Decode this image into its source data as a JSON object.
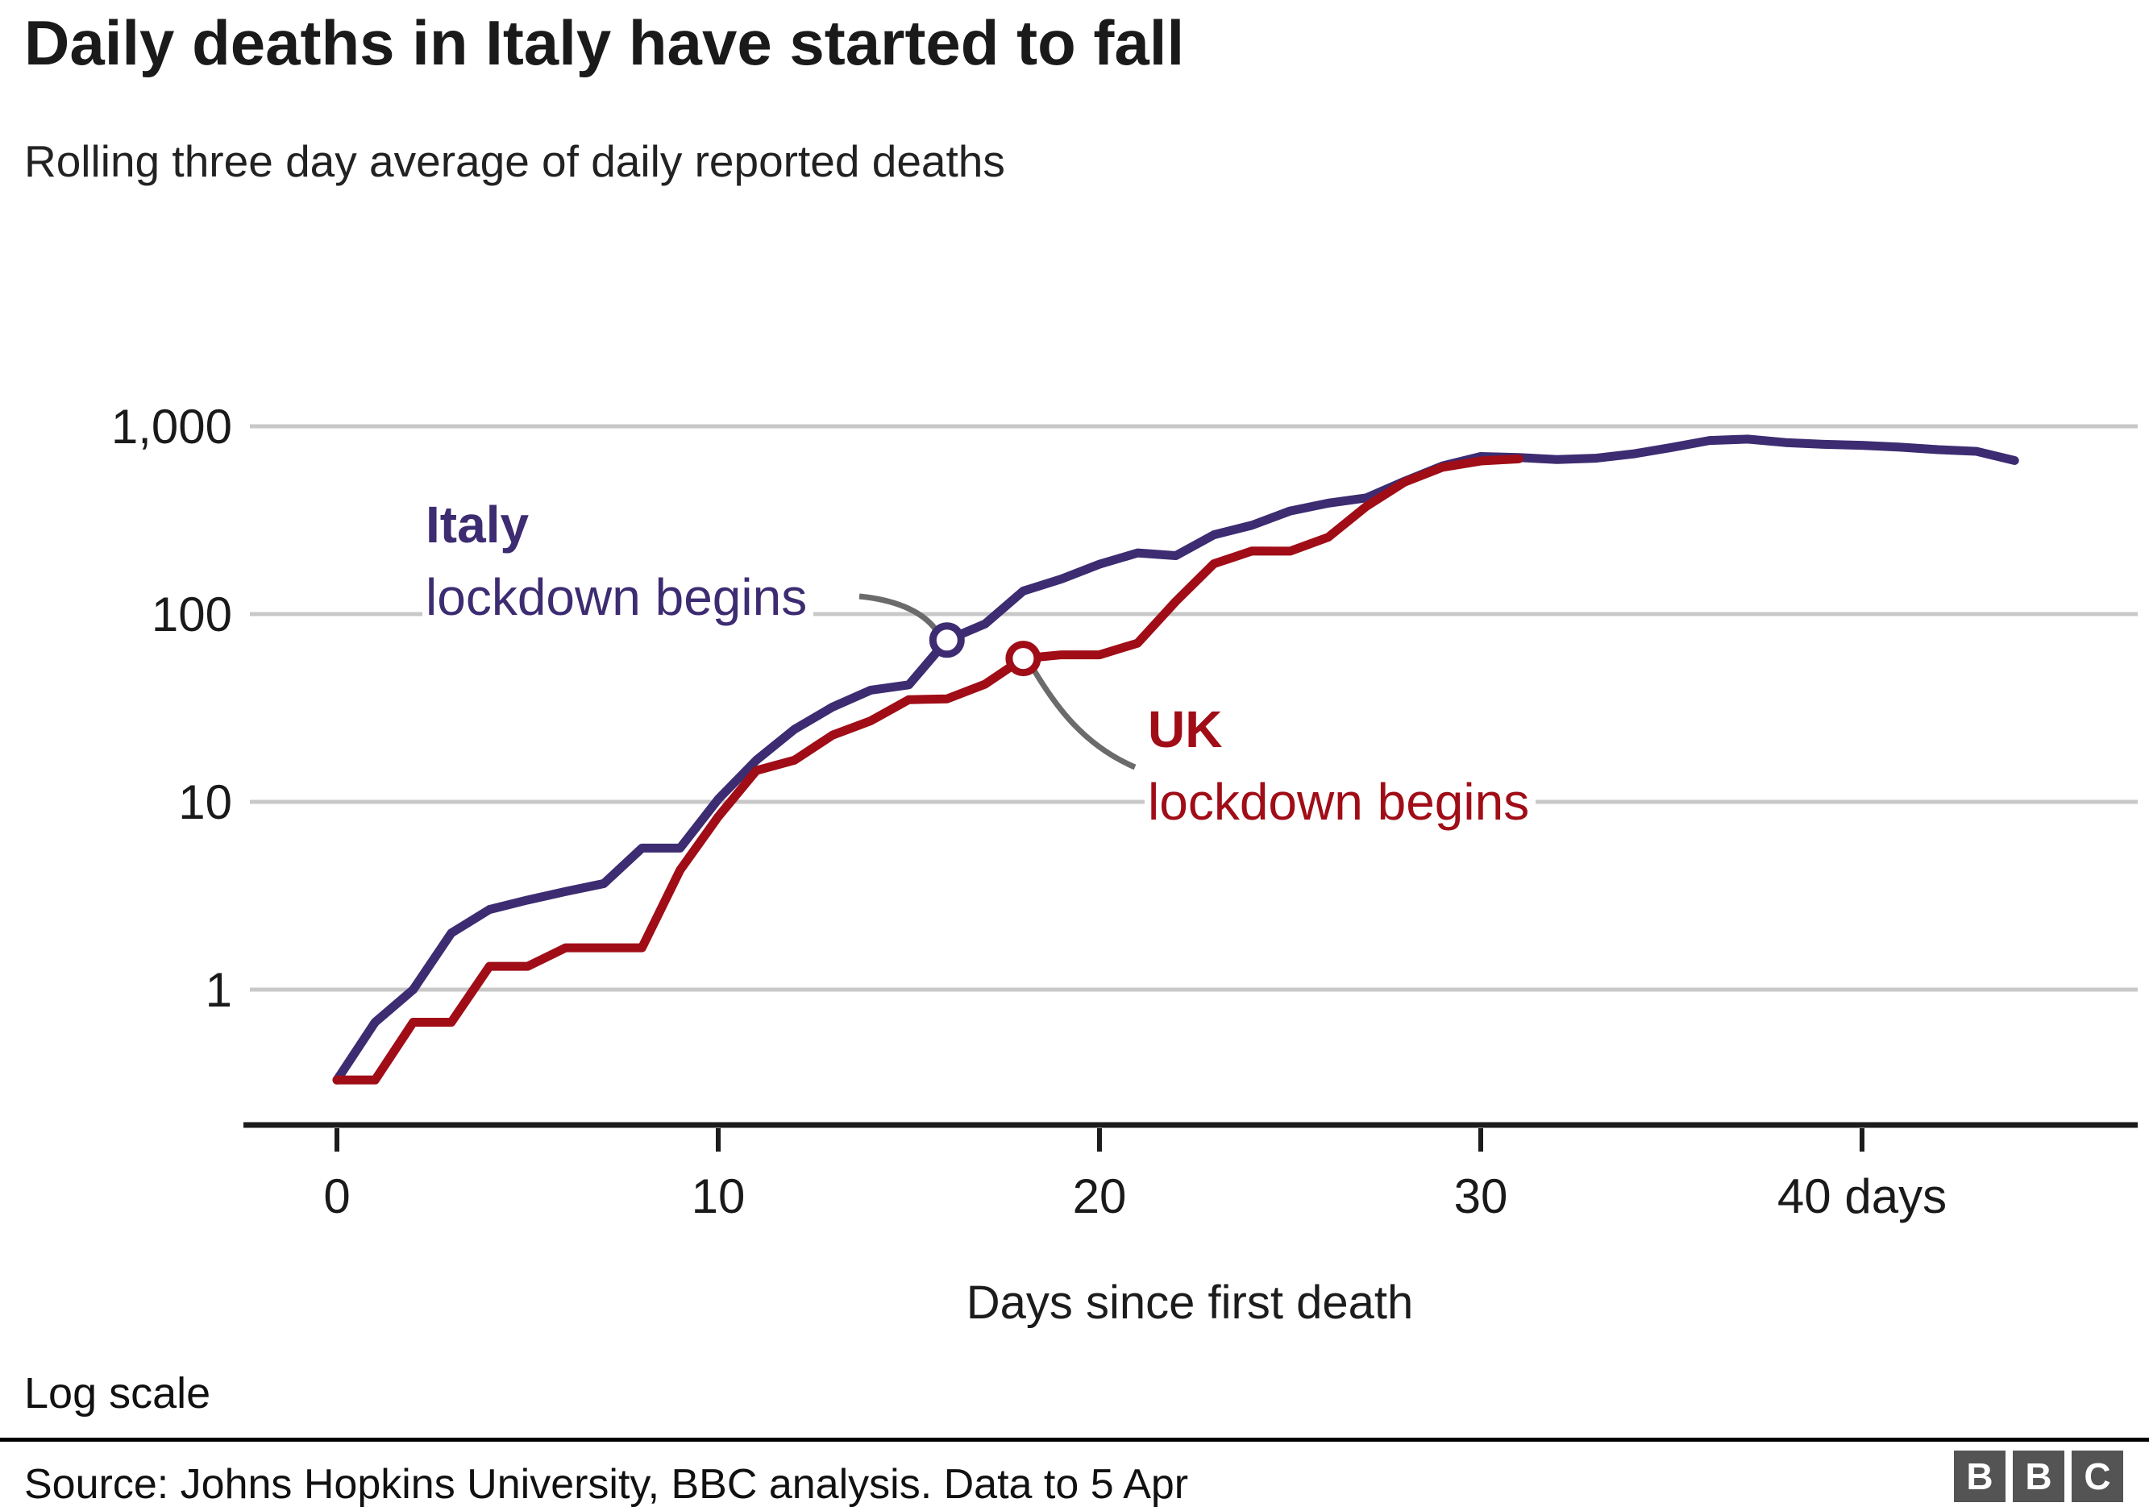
{
  "header": {
    "title": "Daily deaths in Italy have started to fall",
    "subtitle": "Rolling three day average of daily reported deaths"
  },
  "annotations": {
    "italy": {
      "country": "Italy",
      "event": "lockdown begins"
    },
    "uk": {
      "country": "UK",
      "event": "lockdown begins"
    }
  },
  "axis": {
    "x_title": "Days since first death"
  },
  "footer": {
    "scale_note": "Log scale",
    "source": "Source: Johns Hopkins University, BBC analysis. Data to 5 Apr",
    "logo_letters": [
      "B",
      "B",
      "C"
    ]
  },
  "colors": {
    "italy": "#3d2c71",
    "uk": "#a00d17",
    "gridline": "#c8c8c8",
    "axis": "#1c1c1c",
    "callout": "#6b6b6b",
    "text": "#1a1a1a"
  },
  "chart_data": {
    "type": "line",
    "title": "Daily deaths in Italy have started to fall",
    "subtitle": "Rolling three day average of daily reported deaths",
    "xlabel": "Days since first death",
    "ylabel": "",
    "y_scale": "log",
    "grid": "horizontal",
    "y_ticks": [
      {
        "value": 1000,
        "label": "1,000"
      },
      {
        "value": 100,
        "label": "100"
      },
      {
        "value": 10,
        "label": "10"
      },
      {
        "value": 1,
        "label": "1"
      }
    ],
    "x_ticks": [
      {
        "value": 0,
        "label": "0"
      },
      {
        "value": 10,
        "label": "10"
      },
      {
        "value": 20,
        "label": "20"
      },
      {
        "value": 30,
        "label": "30"
      },
      {
        "value": 40,
        "label": "40 days"
      }
    ],
    "x_start": 0,
    "x_step": 1,
    "series": [
      {
        "name": "Italy",
        "color": "#3d2c71",
        "values": [
          0.33,
          0.67,
          1,
          2,
          2.67,
          3,
          3.33,
          3.67,
          5.67,
          5.67,
          10.33,
          16.67,
          24.33,
          32,
          39.33,
          42,
          72.67,
          88.67,
          132.67,
          153.67,
          184.33,
          211.67,
          204.67,
          264.33,
          297.33,
          354,
          389.67,
          415.67,
          509.67,
          615.67,
          690.33,
          681.67,
          665,
          675.67,
          712.67,
          771.33,
          840,
          854.67,
          819,
          801.67,
          792,
          774.67,
          751,
          735.67,
          657.33
        ]
      },
      {
        "name": "UK",
        "color": "#a00d17",
        "values": [
          0.33,
          0.33,
          0.67,
          0.67,
          1.33,
          1.33,
          1.67,
          1.67,
          1.67,
          4.33,
          8.33,
          14.67,
          16.67,
          22.67,
          27,
          35,
          35.33,
          42.33,
          58,
          60.67,
          60.67,
          70,
          116.67,
          185.33,
          216.67,
          216.33,
          256.67,
          374.67,
          504.33,
          605.33,
          653.67,
          671
        ]
      }
    ],
    "markers": [
      {
        "series": "Italy",
        "day": 16,
        "value": 72.67,
        "label": "Italy lockdown begins"
      },
      {
        "series": "UK",
        "day": 18,
        "value": 58,
        "label": "UK lockdown begins"
      }
    ]
  }
}
